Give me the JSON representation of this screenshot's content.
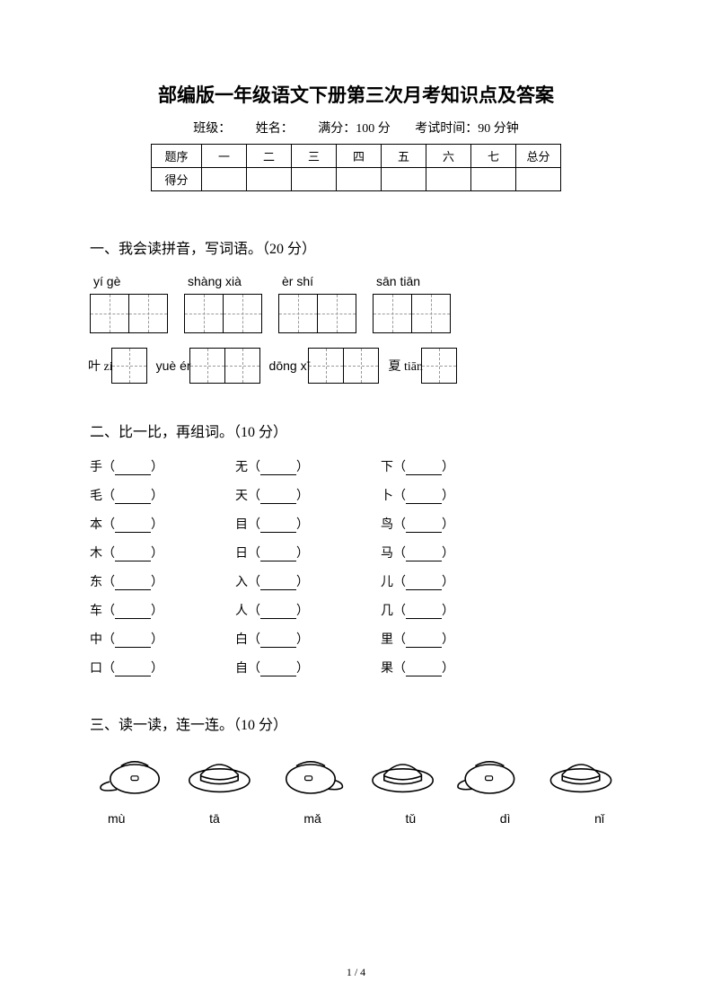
{
  "title": "部编版一年级语文下册第三次月考知识点及答案",
  "info": {
    "class_label": "班级：",
    "name_label": "姓名：",
    "full_score": "满分：100 分",
    "exam_time": "考试时间：90 分钟"
  },
  "score_table": {
    "headers": [
      "题序",
      "一",
      "二",
      "三",
      "四",
      "五",
      "六",
      "七",
      "总分"
    ],
    "row2_label": "得分"
  },
  "section1": {
    "heading": "一、我会读拼音，写词语。（20 分）",
    "row1": [
      {
        "pinyin": "yí  gè",
        "cells": 2
      },
      {
        "pinyin": "shàng  xià",
        "cells": 2
      },
      {
        "pinyin": "èr  shí",
        "cells": 2
      },
      {
        "pinyin": "sān tiān",
        "cells": 2
      }
    ],
    "row2": [
      {
        "label": "叶 zi",
        "cells": 1
      },
      {
        "label": "yuè  ér",
        "cells": 2
      },
      {
        "label": "dōng  xī",
        "cells": 2
      },
      {
        "label": "夏 tiān",
        "cells": 1
      }
    ]
  },
  "section2": {
    "heading": "二、比一比，再组词。（10 分）",
    "columns": [
      [
        "手",
        "毛",
        "本",
        "木",
        "东",
        "车",
        "中",
        "口"
      ],
      [
        "无",
        "天",
        "目",
        "日",
        "入",
        "人",
        "白",
        "自"
      ],
      [
        "下",
        "卜",
        "鸟",
        "马",
        "儿",
        "几",
        "里",
        "果"
      ]
    ]
  },
  "section3": {
    "heading": "三、读一读，连一连。（10 分）",
    "pinyin": [
      "mù",
      "tā",
      "mǎ",
      "tǔ",
      "dì",
      "nǐ"
    ]
  },
  "page_num": "1 / 4"
}
